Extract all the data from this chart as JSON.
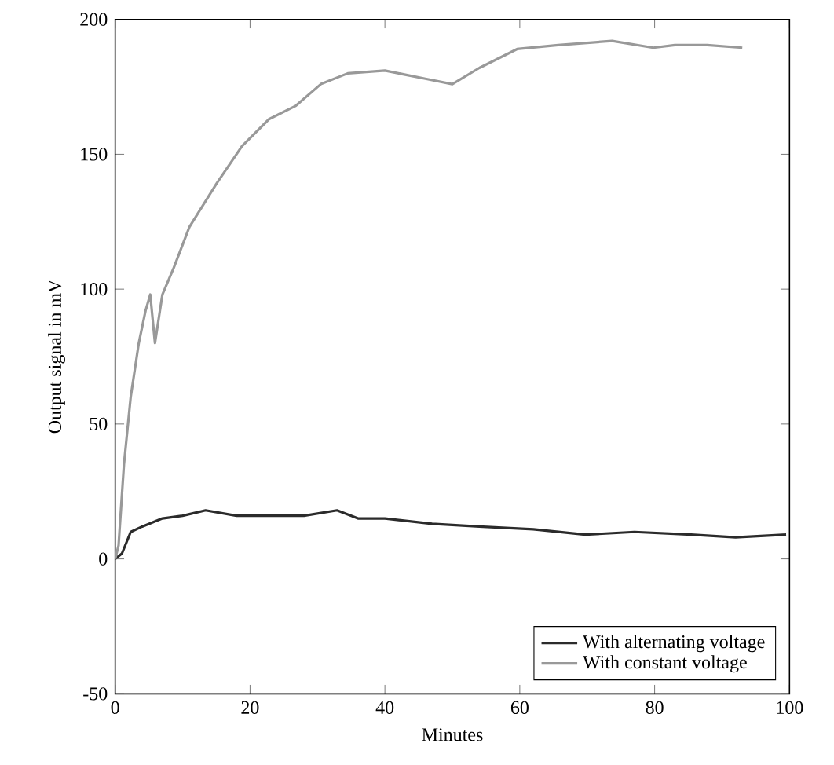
{
  "chart_data": {
    "type": "line",
    "xlabel": "Minutes",
    "ylabel": "Output signal in mV",
    "xlim": [
      0,
      100
    ],
    "ylim": [
      -50,
      200
    ],
    "xticks": [
      0,
      20,
      40,
      60,
      80,
      100
    ],
    "yticks": [
      -50,
      0,
      50,
      100,
      150,
      200
    ],
    "grid": false,
    "legend": "bottom right",
    "marker": "none",
    "line_style": "solid",
    "series": [
      {
        "name": "With alternating voltage",
        "color": "#2b2b2b",
        "x": [
          0,
          1,
          2.3,
          4,
          7,
          10,
          13.4,
          18,
          22.8,
          28,
          32.9,
          36,
          40,
          47,
          54,
          62,
          69.7,
          77,
          85.4,
          92,
          99.5
        ],
        "values": [
          0,
          2,
          10,
          12,
          15,
          16,
          18,
          16,
          16,
          16,
          18,
          15,
          15,
          13,
          12,
          11,
          9,
          10,
          9,
          8,
          9
        ]
      },
      {
        "name": "With constant voltage",
        "color": "#999999",
        "x": [
          0,
          0.5,
          1.3,
          2.3,
          3.5,
          4.5,
          5.2,
          5.9,
          7,
          8.7,
          11,
          15,
          18.8,
          22.8,
          26.8,
          30.5,
          34.5,
          40,
          46,
          50,
          54,
          59.6,
          65.7,
          73.7,
          79.8,
          83,
          87.8,
          93
        ],
        "values": [
          0,
          5,
          35,
          60,
          80,
          92,
          98,
          80,
          98,
          108,
          123,
          139,
          153,
          163,
          168,
          176,
          180,
          181,
          178,
          176,
          182,
          189,
          190.5,
          192,
          189.5,
          190.5,
          190.5,
          189.5
        ]
      }
    ]
  }
}
